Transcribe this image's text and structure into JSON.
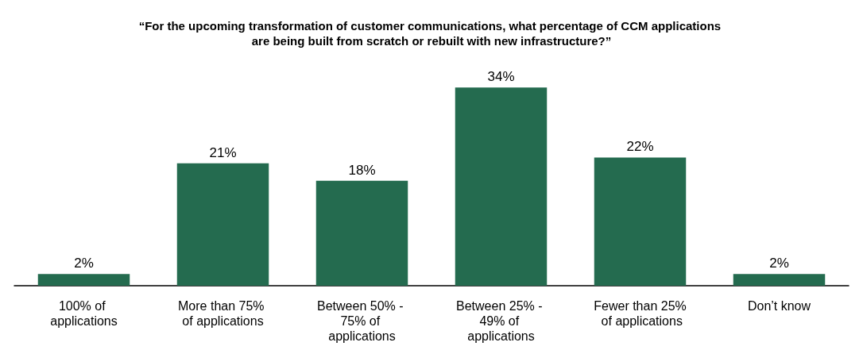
{
  "chart_data": {
    "type": "bar",
    "title": "“For the upcoming transformation of customer communications, what percentage of CCM applications are being built from scratch or rebuilt with new infrastructure?”",
    "categories": [
      "100% of applications",
      "More than 75% of applications",
      "Between 50% - 75% of applications",
      "Between 25% - 49% of applications",
      "Fewer than 25% of applications",
      "Don’t know"
    ],
    "values": [
      2,
      21,
      18,
      34,
      22,
      2
    ],
    "value_labels": [
      "2%",
      "21%",
      "18%",
      "34%",
      "22%",
      "2%"
    ],
    "color": "#246b4f",
    "grid": false
  }
}
